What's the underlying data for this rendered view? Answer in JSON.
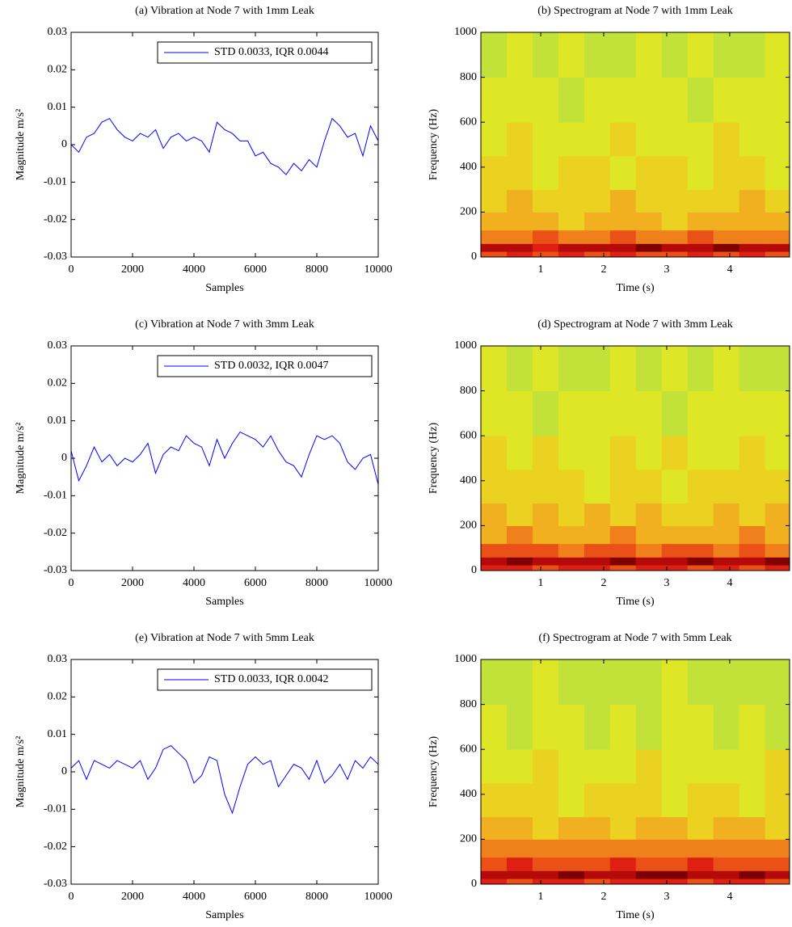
{
  "chart_data": [
    {
      "type": "line",
      "title": "(a) Vibration at Node 7 with 1mm Leak",
      "xlabel": "Samples",
      "ylabel": "Magnitude m/s²",
      "x": [
        0,
        250,
        500,
        750,
        1000,
        1250,
        1500,
        1750,
        2000,
        2250,
        2500,
        2750,
        3000,
        3250,
        3500,
        3750,
        4000,
        4250,
        4500,
        4750,
        5000,
        5250,
        5500,
        5750,
        6000,
        6250,
        6500,
        6750,
        7000,
        7250,
        7500,
        7750,
        8000,
        8250,
        8500,
        8750,
        9000,
        9250,
        9500,
        9750,
        10000
      ],
      "series": [
        {
          "name": "STD 0.0033, IQR 0.0044",
          "color": "#0000ff",
          "values": [
            0,
            -0.002,
            0.002,
            0.003,
            0.006,
            0.007,
            0.004,
            0.002,
            0.001,
            0.003,
            0.002,
            0.004,
            -0.001,
            0.002,
            0.003,
            0.001,
            0.002,
            0.001,
            -0.002,
            0.006,
            0.004,
            0.003,
            0.001,
            0.001,
            -0.003,
            -0.002,
            -0.005,
            -0.006,
            -0.008,
            -0.005,
            -0.007,
            -0.004,
            -0.006,
            0.001,
            0.007,
            0.005,
            0.002,
            0.003,
            -0.003,
            0.005,
            0.001
          ]
        }
      ],
      "xlim": [
        0,
        10000
      ],
      "xticks": [
        0,
        2000,
        4000,
        6000,
        8000,
        10000
      ],
      "ylim": [
        -0.03,
        0.03
      ],
      "yticks": [
        -0.03,
        -0.02,
        -0.01,
        0,
        0.01,
        0.02,
        0.03
      ],
      "legend": "upper right"
    },
    {
      "type": "heatmap",
      "title": "(b) Spectrogram at Node 7 with 1mm Leak",
      "xlabel": "Time (s)",
      "ylabel": "Frequency (Hz)",
      "x_edges": [
        0.05,
        0.46,
        0.87,
        1.28,
        1.69,
        2.1,
        2.51,
        2.92,
        3.33,
        3.74,
        4.15,
        4.56,
        4.95
      ],
      "y_edges": [
        0,
        25,
        60,
        120,
        200,
        300,
        450,
        600,
        800,
        1000
      ],
      "z": [
        [
          7,
          8,
          7,
          8,
          7,
          8,
          7,
          7,
          8,
          7,
          8,
          7
        ],
        [
          9,
          9,
          8,
          9,
          9,
          9,
          10,
          9,
          9,
          10,
          9,
          9
        ],
        [
          6,
          6,
          7,
          6,
          6,
          7,
          6,
          6,
          7,
          6,
          6,
          6
        ],
        [
          5,
          5,
          5,
          4,
          5,
          5,
          5,
          4,
          5,
          5,
          5,
          5
        ],
        [
          4,
          5,
          4,
          4,
          4,
          5,
          4,
          4,
          4,
          4,
          5,
          4
        ],
        [
          4,
          4,
          3,
          4,
          4,
          3,
          4,
          4,
          3,
          4,
          4,
          3
        ],
        [
          3,
          4,
          3,
          3,
          3,
          4,
          3,
          3,
          3,
          4,
          3,
          3
        ],
        [
          3,
          3,
          3,
          2,
          3,
          3,
          3,
          3,
          2,
          3,
          3,
          3
        ],
        [
          2,
          3,
          2,
          3,
          2,
          2,
          3,
          2,
          3,
          2,
          2,
          3
        ]
      ],
      "zlim": [
        0,
        10
      ],
      "colormap": [
        "#50d0a0",
        "#b8e040",
        "#e8e820",
        "#f0b020",
        "#f06018",
        "#d81010",
        "#800000"
      ],
      "xlim": [
        0.05,
        4.95
      ],
      "xticks": [
        1,
        2,
        3,
        4
      ],
      "ylim": [
        0,
        1000
      ],
      "yticks": [
        0,
        200,
        400,
        600,
        800,
        1000
      ]
    },
    {
      "type": "line",
      "title": "(c) Vibration at Node 7 with 3mm Leak",
      "xlabel": "Samples",
      "ylabel": "Magnitude m/s²",
      "x": [
        0,
        250,
        500,
        750,
        1000,
        1250,
        1500,
        1750,
        2000,
        2250,
        2500,
        2750,
        3000,
        3250,
        3500,
        3750,
        4000,
        4250,
        4500,
        4750,
        5000,
        5250,
        5500,
        5750,
        6000,
        6250,
        6500,
        6750,
        7000,
        7250,
        7500,
        7750,
        8000,
        8250,
        8500,
        8750,
        9000,
        9250,
        9500,
        9750,
        10000
      ],
      "series": [
        {
          "name": "STD 0.0032, IQR 0.0047",
          "color": "#0000ff",
          "values": [
            0.002,
            -0.006,
            -0.002,
            0.003,
            -0.001,
            0.001,
            -0.002,
            0,
            -0.001,
            0.001,
            0.004,
            -0.004,
            0.001,
            0.003,
            0.002,
            0.006,
            0.004,
            0.003,
            -0.002,
            0.005,
            0,
            0.004,
            0.007,
            0.006,
            0.005,
            0.003,
            0.006,
            0.002,
            -0.001,
            -0.002,
            -0.005,
            0.001,
            0.006,
            0.005,
            0.006,
            0.004,
            -0.001,
            -0.003,
            0,
            0.001,
            -0.007
          ]
        }
      ],
      "xlim": [
        0,
        10000
      ],
      "xticks": [
        0,
        2000,
        4000,
        6000,
        8000,
        10000
      ],
      "ylim": [
        -0.03,
        0.03
      ],
      "yticks": [
        -0.03,
        -0.02,
        -0.01,
        0,
        0.01,
        0.02,
        0.03
      ],
      "legend": "upper right"
    },
    {
      "type": "heatmap",
      "title": "(d) Spectrogram at Node 7 with 3mm Leak",
      "xlabel": "Time (s)",
      "ylabel": "Frequency (Hz)",
      "x_edges": [
        0.05,
        0.46,
        0.87,
        1.28,
        1.69,
        2.1,
        2.51,
        2.92,
        3.33,
        3.74,
        4.15,
        4.56,
        4.95
      ],
      "y_edges": [
        0,
        25,
        60,
        120,
        200,
        300,
        450,
        600,
        800,
        1000
      ],
      "z": [
        [
          8,
          8,
          7,
          8,
          8,
          7,
          8,
          8,
          7,
          8,
          7,
          8
        ],
        [
          9,
          10,
          9,
          9,
          9,
          10,
          9,
          9,
          10,
          9,
          9,
          10
        ],
        [
          7,
          7,
          7,
          6,
          7,
          7,
          6,
          7,
          7,
          6,
          7,
          6
        ],
        [
          5,
          6,
          5,
          5,
          5,
          6,
          5,
          5,
          5,
          5,
          6,
          5
        ],
        [
          5,
          4,
          5,
          4,
          5,
          4,
          5,
          4,
          4,
          5,
          4,
          5
        ],
        [
          4,
          4,
          4,
          4,
          3,
          4,
          4,
          3,
          4,
          4,
          4,
          4
        ],
        [
          4,
          3,
          4,
          3,
          3,
          4,
          3,
          4,
          3,
          3,
          4,
          3
        ],
        [
          3,
          3,
          2,
          3,
          3,
          3,
          3,
          2,
          3,
          3,
          3,
          3
        ],
        [
          3,
          2,
          3,
          2,
          2,
          3,
          2,
          3,
          2,
          3,
          2,
          2
        ]
      ],
      "zlim": [
        0,
        10
      ],
      "colormap": [
        "#50d0a0",
        "#b8e040",
        "#e8e820",
        "#f0b020",
        "#f06018",
        "#d81010",
        "#800000"
      ],
      "xlim": [
        0.05,
        4.95
      ],
      "xticks": [
        1,
        2,
        3,
        4
      ],
      "ylim": [
        0,
        1000
      ],
      "yticks": [
        0,
        200,
        400,
        600,
        800,
        1000
      ]
    },
    {
      "type": "line",
      "title": "(e) Vibration at Node 7 with 5mm Leak",
      "xlabel": "Samples",
      "ylabel": "Magnitude m/s²",
      "x": [
        0,
        250,
        500,
        750,
        1000,
        1250,
        1500,
        1750,
        2000,
        2250,
        2500,
        2750,
        3000,
        3250,
        3500,
        3750,
        4000,
        4250,
        4500,
        4750,
        5000,
        5250,
        5500,
        5750,
        6000,
        6250,
        6500,
        6750,
        7000,
        7250,
        7500,
        7750,
        8000,
        8250,
        8500,
        8750,
        9000,
        9250,
        9500,
        9750,
        10000
      ],
      "series": [
        {
          "name": "STD 0.0033, IQR 0.0042",
          "color": "#0000ff",
          "values": [
            0.001,
            0.003,
            -0.002,
            0.003,
            0.002,
            0.001,
            0.003,
            0.002,
            0.001,
            0.003,
            -0.002,
            0.001,
            0.006,
            0.007,
            0.005,
            0.003,
            -0.003,
            -0.001,
            0.004,
            0.003,
            -0.006,
            -0.011,
            -0.004,
            0.002,
            0.004,
            0.002,
            0.003,
            -0.004,
            -0.001,
            0.002,
            0.001,
            -0.002,
            0.003,
            -0.003,
            -0.001,
            0.002,
            -0.002,
            0.003,
            0.001,
            0.004,
            0.002
          ]
        }
      ],
      "xlim": [
        0,
        10000
      ],
      "xticks": [
        0,
        2000,
        4000,
        6000,
        8000,
        10000
      ],
      "ylim": [
        -0.03,
        0.03
      ],
      "yticks": [
        -0.03,
        -0.02,
        -0.01,
        0,
        0.01,
        0.02,
        0.03
      ],
      "legend": "upper right"
    },
    {
      "type": "heatmap",
      "title": "(f) Spectrogram at Node 7 with 5mm Leak",
      "xlabel": "Time (s)",
      "ylabel": "Frequency (Hz)",
      "x_edges": [
        0.05,
        0.46,
        0.87,
        1.28,
        1.69,
        2.1,
        2.51,
        2.92,
        3.33,
        3.74,
        4.15,
        4.56,
        4.95
      ],
      "y_edges": [
        0,
        25,
        60,
        120,
        200,
        300,
        450,
        600,
        800,
        1000
      ],
      "z": [
        [
          8,
          7,
          8,
          8,
          7,
          8,
          8,
          8,
          7,
          8,
          8,
          7
        ],
        [
          9,
          9,
          9,
          10,
          9,
          9,
          10,
          10,
          9,
          9,
          10,
          9
        ],
        [
          7,
          8,
          7,
          7,
          7,
          8,
          7,
          7,
          8,
          7,
          7,
          7
        ],
        [
          6,
          6,
          6,
          6,
          6,
          6,
          6,
          6,
          6,
          6,
          6,
          6
        ],
        [
          5,
          5,
          4,
          5,
          5,
          4,
          5,
          5,
          4,
          5,
          5,
          4
        ],
        [
          4,
          4,
          4,
          3,
          4,
          4,
          4,
          3,
          4,
          4,
          3,
          4
        ],
        [
          3,
          3,
          4,
          3,
          3,
          3,
          4,
          3,
          3,
          3,
          3,
          4
        ],
        [
          3,
          2,
          3,
          3,
          2,
          3,
          2,
          3,
          3,
          2,
          3,
          2
        ],
        [
          2,
          2,
          3,
          2,
          2,
          2,
          2,
          3,
          2,
          2,
          2,
          2
        ]
      ],
      "zlim": [
        0,
        10
      ],
      "colormap": [
        "#50d0a0",
        "#b8e040",
        "#e8e820",
        "#f0b020",
        "#f06018",
        "#d81010",
        "#800000"
      ],
      "xlim": [
        0.05,
        4.95
      ],
      "xticks": [
        1,
        2,
        3,
        4
      ],
      "ylim": [
        0,
        1000
      ],
      "yticks": [
        0,
        200,
        400,
        600,
        800,
        1000
      ]
    }
  ]
}
